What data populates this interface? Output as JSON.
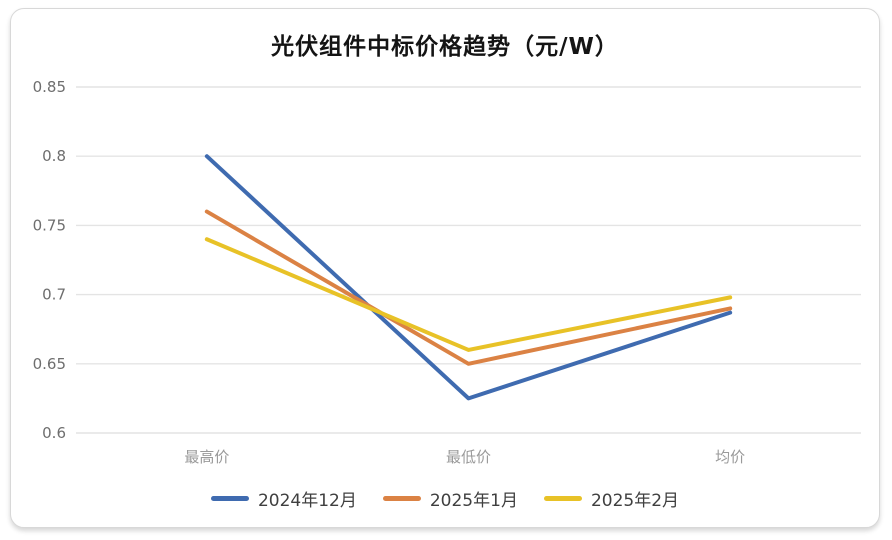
{
  "chart_data": {
    "type": "line",
    "title": "光伏组件中标价格趋势（元/W）",
    "categories": [
      "最高价",
      "最低价",
      "均价"
    ],
    "series": [
      {
        "name": "2024年12月",
        "color": "#3F6BB0",
        "values": [
          0.8,
          0.625,
          0.687
        ]
      },
      {
        "name": "2025年1月",
        "color": "#DB8244",
        "values": [
          0.76,
          0.65,
          0.69
        ]
      },
      {
        "name": "2025年2月",
        "color": "#E8C227",
        "values": [
          0.74,
          0.66,
          0.698
        ]
      }
    ],
    "ylim": [
      0.6,
      0.85
    ],
    "yticks": [
      0.85,
      0.8,
      0.75,
      0.7,
      0.65,
      0.6
    ],
    "xlabel": "",
    "ylabel": "",
    "grid": "horizontal",
    "gridline_color": "#e4e4e4",
    "ytick_label_color": "#6e6e6e",
    "xtick_label_color": "#9a9a9a",
    "legend_position": "bottom",
    "line_width": 4
  }
}
